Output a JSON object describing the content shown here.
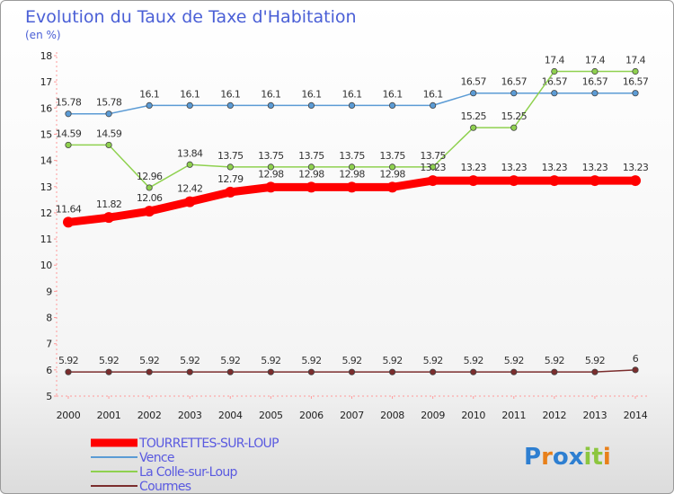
{
  "chart_data": {
    "type": "line",
    "title": "Evolution du Taux de Taxe d'Habitation",
    "subtitle": "(en %)",
    "xlabel": "",
    "ylabel": "",
    "x": [
      "2000",
      "2001",
      "2002",
      "2003",
      "2004",
      "2005",
      "2006",
      "2007",
      "2008",
      "2009",
      "2010",
      "2011",
      "2012",
      "2013",
      "2014"
    ],
    "ylim": [
      5,
      18
    ],
    "yticks": [
      5,
      6,
      7,
      8,
      9,
      10,
      11,
      12,
      13,
      14,
      15,
      16,
      17,
      18
    ],
    "grid": false,
    "legend_position": "bottom-left",
    "series": [
      {
        "name": "Vence",
        "color": "#5b9bd5",
        "values": [
          15.78,
          15.78,
          16.1,
          16.1,
          16.1,
          16.1,
          16.1,
          16.1,
          16.1,
          16.1,
          16.57,
          16.57,
          16.57,
          16.57,
          16.57
        ],
        "labels": [
          "15.78",
          "15.78",
          "16.1",
          "16.1",
          "16.1",
          "16.1",
          "16.1",
          "16.1",
          "16.1",
          "16.1",
          "16.57",
          "16.57",
          "16.57",
          "16.57",
          "16.57"
        ]
      },
      {
        "name": "La Colle-sur-Loup",
        "color": "#8fd14f",
        "values": [
          14.59,
          14.59,
          12.96,
          13.84,
          13.75,
          13.75,
          13.75,
          13.75,
          13.75,
          13.75,
          15.25,
          15.25,
          17.4,
          17.4,
          17.4
        ],
        "labels": [
          "14.59",
          "14.59",
          "12.96",
          "13.84",
          "13.75",
          "13.75",
          "13.75",
          "13.75",
          "13.75",
          "13.75",
          "15.25",
          "15.25",
          "17.4",
          "17.4",
          "17.4"
        ]
      },
      {
        "name": "TOURRETTES-SUR-LOUP",
        "color": "#ff0000",
        "values": [
          11.64,
          11.82,
          12.06,
          12.42,
          12.79,
          12.98,
          12.98,
          12.98,
          12.98,
          13.23,
          13.23,
          13.23,
          13.23,
          13.23,
          13.23
        ],
        "labels": [
          "11.64",
          "11.82",
          "12.06",
          "12.42",
          "12.79",
          "12.98",
          "12.98",
          "12.98",
          "12.98",
          "13.23",
          "13.23",
          "13.23",
          "13.23",
          "13.23",
          "13.23"
        ]
      },
      {
        "name": "Courmes",
        "color": "#7b2d2d",
        "values": [
          5.92,
          5.92,
          5.92,
          5.92,
          5.92,
          5.92,
          5.92,
          5.92,
          5.92,
          5.92,
          5.92,
          5.92,
          5.92,
          5.92,
          6
        ],
        "labels": [
          "5.92",
          "5.92",
          "5.92",
          "5.92",
          "5.92",
          "5.92",
          "5.92",
          "5.92",
          "5.92",
          "5.92",
          "5.92",
          "5.92",
          "5.92",
          "5.92",
          "6"
        ]
      }
    ],
    "legend": [
      {
        "name": "TOURRETTES-SUR-LOUP",
        "color": "#ff0000"
      },
      {
        "name": "Vence",
        "color": "#5b9bd5"
      },
      {
        "name": "La Colle-sur-Loup",
        "color": "#8fd14f"
      },
      {
        "name": "Courmes",
        "color": "#7b2d2d"
      }
    ],
    "legend_text_color": "#5a5ae0"
  },
  "logo": {
    "text": "Proxiti",
    "letters": [
      "P",
      "r",
      "o",
      "x",
      "i",
      "t",
      "i"
    ],
    "colors": [
      "#2e7fd1",
      "#e8801a",
      "#2e7fd1",
      "#2e7fd1",
      "#8cc63f",
      "#8cc63f",
      "#e8801a"
    ]
  }
}
